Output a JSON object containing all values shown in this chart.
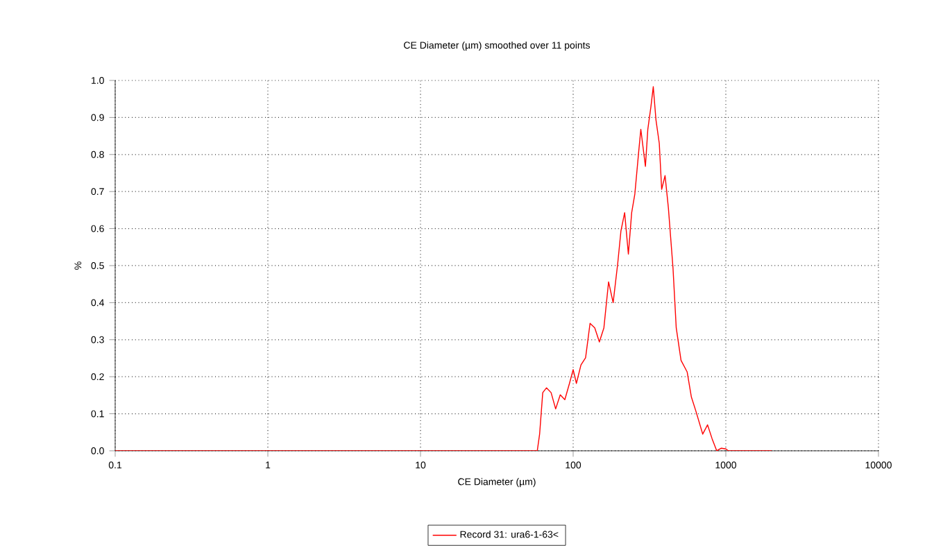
{
  "chart_data": {
    "type": "line",
    "title": "CE Diameter (µm) smoothed over 11 points",
    "xlabel": "CE Diameter (µm)",
    "ylabel": "%",
    "log": "x",
    "grid": true,
    "legend": "bottom",
    "marker": "none",
    "line_style": "solid",
    "xlim": [
      0.1,
      10000
    ],
    "xticks": [
      0.1,
      1,
      10,
      100,
      1000,
      10000
    ],
    "ylim": [
      0,
      1
    ],
    "yticks": [
      {
        "value": 0,
        "label": "0.0"
      },
      0.1,
      0.2,
      0.3,
      0.4,
      0.5,
      0.6,
      0.7,
      0.8,
      0.9,
      {
        "value": 1,
        "label": "1.0"
      }
    ],
    "series": [
      {
        "name": "Record 31: ura6-1-63<",
        "color": "#ff0000",
        "x": [
          0.1,
          58.2,
          60.3,
          63.2,
          66.9,
          71.7,
          76.8,
          82.3,
          88.2,
          94.6,
          100,
          105,
          112.5,
          120.6,
          129,
          138.5,
          148.5,
          159,
          170.6,
          182.8,
          195.9,
          205.6,
          217.4,
          230,
          241.7,
          253.5,
          268.5,
          277.5,
          297.4,
          308.4,
          323.3,
          334.8,
          348.8,
          366.6,
          380,
          400,
          420.5,
          450.8,
          473.3,
          509,
          558,
          595,
          637,
          706,
          759,
          814,
          872,
          935,
          1000,
          1039,
          2000
        ],
        "values": [
          0,
          0,
          0.045,
          0.157,
          0.17,
          0.157,
          0.113,
          0.151,
          0.138,
          0.182,
          0.219,
          0.182,
          0.232,
          0.251,
          0.344,
          0.332,
          0.294,
          0.332,
          0.456,
          0.4,
          0.506,
          0.594,
          0.643,
          0.531,
          0.643,
          0.693,
          0.806,
          0.868,
          0.768,
          0.868,
          0.93,
          0.983,
          0.893,
          0.83,
          0.706,
          0.743,
          0.656,
          0.494,
          0.332,
          0.244,
          0.213,
          0.145,
          0.107,
          0.045,
          0.07,
          0.032,
          0,
          0.007,
          0.005,
          0,
          0
        ]
      }
    ]
  }
}
